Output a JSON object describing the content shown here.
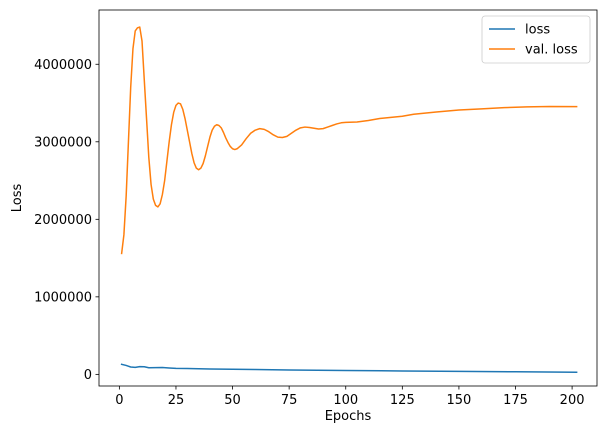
{
  "chart_data": {
    "type": "line",
    "xlabel": "Epochs",
    "ylabel": "Loss",
    "xlim": [
      -9,
      211
    ],
    "ylim": [
      -150000,
      4700000
    ],
    "xticks": [
      0,
      25,
      50,
      75,
      100,
      125,
      150,
      175,
      200
    ],
    "yticks": [
      0,
      1000000,
      2000000,
      3000000,
      4000000
    ],
    "grid": false,
    "legend_position": "top-right",
    "series": [
      {
        "name": "loss",
        "color": "#1f77b4",
        "points": [
          [
            1,
            130000
          ],
          [
            3,
            115000
          ],
          [
            5,
            95000
          ],
          [
            7,
            90000
          ],
          [
            9,
            100000
          ],
          [
            11,
            98000
          ],
          [
            13,
            85000
          ],
          [
            16,
            87000
          ],
          [
            19,
            88000
          ],
          [
            22,
            82000
          ],
          [
            25,
            78000
          ],
          [
            30,
            76000
          ],
          [
            40,
            70000
          ],
          [
            50,
            66000
          ],
          [
            60,
            62000
          ],
          [
            75,
            57000
          ],
          [
            100,
            50000
          ],
          [
            125,
            44000
          ],
          [
            150,
            38000
          ],
          [
            175,
            33000
          ],
          [
            202,
            28000
          ]
        ]
      },
      {
        "name": "val. loss",
        "color": "#ff7f0e",
        "points": [
          [
            1,
            1560000
          ],
          [
            2,
            1800000
          ],
          [
            3,
            2300000
          ],
          [
            4,
            3000000
          ],
          [
            5,
            3700000
          ],
          [
            6,
            4200000
          ],
          [
            7,
            4430000
          ],
          [
            8,
            4470000
          ],
          [
            9,
            4480000
          ],
          [
            10,
            4300000
          ],
          [
            11,
            3800000
          ],
          [
            12,
            3300000
          ],
          [
            13,
            2800000
          ],
          [
            14,
            2450000
          ],
          [
            15,
            2260000
          ],
          [
            16,
            2180000
          ],
          [
            17,
            2160000
          ],
          [
            18,
            2200000
          ],
          [
            19,
            2320000
          ],
          [
            20,
            2500000
          ],
          [
            21,
            2750000
          ],
          [
            22,
            3000000
          ],
          [
            23,
            3220000
          ],
          [
            24,
            3380000
          ],
          [
            25,
            3470000
          ],
          [
            26,
            3500000
          ],
          [
            27,
            3490000
          ],
          [
            28,
            3420000
          ],
          [
            29,
            3300000
          ],
          [
            30,
            3150000
          ],
          [
            31,
            3000000
          ],
          [
            32,
            2850000
          ],
          [
            33,
            2730000
          ],
          [
            34,
            2660000
          ],
          [
            35,
            2640000
          ],
          [
            36,
            2660000
          ],
          [
            37,
            2720000
          ],
          [
            38,
            2820000
          ],
          [
            39,
            2940000
          ],
          [
            40,
            3060000
          ],
          [
            41,
            3150000
          ],
          [
            42,
            3200000
          ],
          [
            43,
            3220000
          ],
          [
            44,
            3210000
          ],
          [
            45,
            3180000
          ],
          [
            46,
            3120000
          ],
          [
            47,
            3050000
          ],
          [
            48,
            2990000
          ],
          [
            49,
            2940000
          ],
          [
            50,
            2910000
          ],
          [
            51,
            2900000
          ],
          [
            52,
            2910000
          ],
          [
            54,
            2960000
          ],
          [
            56,
            3040000
          ],
          [
            58,
            3110000
          ],
          [
            60,
            3150000
          ],
          [
            62,
            3170000
          ],
          [
            64,
            3160000
          ],
          [
            66,
            3130000
          ],
          [
            68,
            3090000
          ],
          [
            70,
            3060000
          ],
          [
            72,
            3055000
          ],
          [
            74,
            3070000
          ],
          [
            76,
            3110000
          ],
          [
            78,
            3150000
          ],
          [
            80,
            3180000
          ],
          [
            82,
            3190000
          ],
          [
            84,
            3185000
          ],
          [
            86,
            3175000
          ],
          [
            88,
            3165000
          ],
          [
            90,
            3170000
          ],
          [
            92,
            3190000
          ],
          [
            94,
            3210000
          ],
          [
            96,
            3230000
          ],
          [
            98,
            3245000
          ],
          [
            100,
            3250000
          ],
          [
            105,
            3255000
          ],
          [
            110,
            3275000
          ],
          [
            115,
            3300000
          ],
          [
            120,
            3315000
          ],
          [
            125,
            3330000
          ],
          [
            130,
            3355000
          ],
          [
            140,
            3385000
          ],
          [
            150,
            3410000
          ],
          [
            160,
            3425000
          ],
          [
            170,
            3440000
          ],
          [
            180,
            3450000
          ],
          [
            190,
            3455000
          ],
          [
            202,
            3453000
          ]
        ]
      }
    ]
  }
}
